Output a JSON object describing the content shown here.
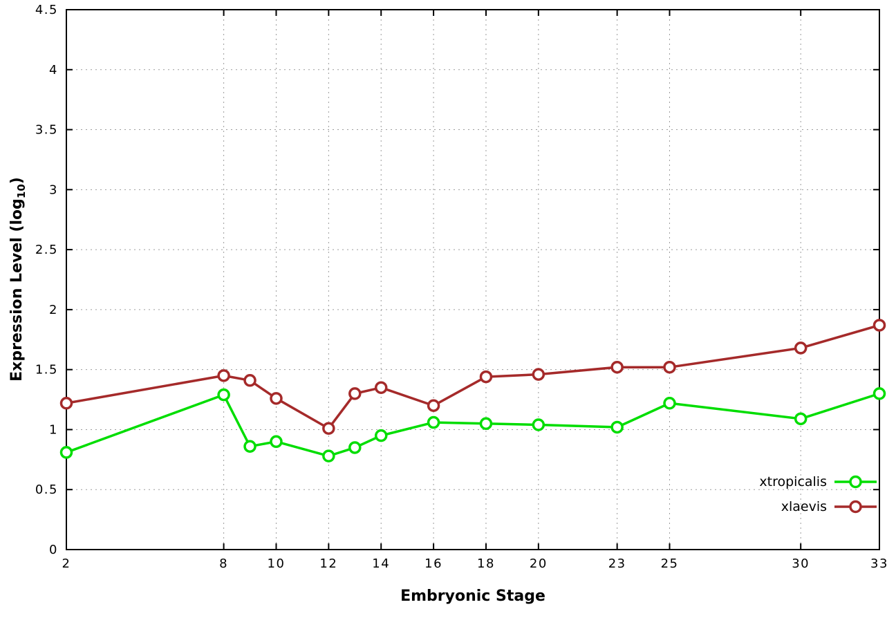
{
  "chart_data": {
    "type": "line",
    "title": "",
    "xlabel": "Embryonic Stage",
    "ylabel": "Expression Level (log_10)",
    "ylabel_parts": {
      "prefix": "Expression Level (log",
      "sub": "10",
      "suffix": ")"
    },
    "xlim": [
      2,
      33
    ],
    "ylim": [
      0,
      4.5
    ],
    "x_ticks": [
      2,
      8,
      10,
      12,
      14,
      16,
      18,
      20,
      23,
      25,
      30,
      33
    ],
    "y_ticks": [
      0,
      0.5,
      1,
      1.5,
      2,
      2.5,
      3,
      3.5,
      4,
      4.5
    ],
    "grid": true,
    "legend_position": "bottom-right-inside",
    "x": [
      2,
      8,
      9,
      10,
      12,
      13,
      14,
      16,
      18,
      20,
      23,
      25,
      30,
      33
    ],
    "series": [
      {
        "name": "xtropicalis",
        "color": "#00dd00",
        "values": [
          0.81,
          1.29,
          0.86,
          0.9,
          0.78,
          0.85,
          0.95,
          1.06,
          1.05,
          1.04,
          1.02,
          1.22,
          1.09,
          1.3
        ]
      },
      {
        "name": "xlaevis",
        "color": "#a52a2a",
        "values": [
          1.22,
          1.45,
          1.41,
          1.26,
          1.01,
          1.3,
          1.35,
          1.2,
          1.44,
          1.46,
          1.52,
          1.52,
          1.68,
          1.87
        ]
      }
    ],
    "colors": {
      "axis": "#000000",
      "grid": "#9a9a9a",
      "text": "#000000",
      "background": "#ffffff",
      "marker_fill": "#ffffff"
    }
  }
}
